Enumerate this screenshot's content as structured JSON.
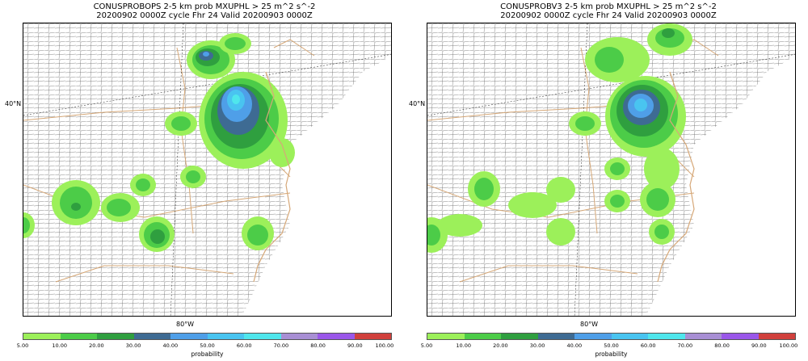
{
  "panels": [
    {
      "title_line1": "CONUSPROBOPS 2-5 km prob MXUPHL > 25 m^2 s^-2",
      "title_line2": "20200902 0000Z cycle Fhr 24 Valid 20200903 0000Z"
    },
    {
      "title_line1": "CONUSPROBV3 2-5 km prob MXUPHL > 25 m^2 s^-2",
      "title_line2": "20200902 0000Z cycle Fhr 24 Valid 20200903 0000Z"
    }
  ],
  "axes": {
    "lat_label": "40°N",
    "lon_label": "80°W"
  },
  "colorbar": {
    "label": "probability",
    "ticks": [
      "5.00",
      "10.00",
      "20.00",
      "30.00",
      "40.00",
      "50.00",
      "60.00",
      "70.00",
      "80.00",
      "90.00",
      "100.00"
    ],
    "colors": [
      "#9cf05a",
      "#4ccc48",
      "#2f9f3f",
      "#3e6b93",
      "#4f9fe8",
      "#49c4f0",
      "#4fe6ec",
      "#a88fd4",
      "#9a57e9",
      "#d0403c"
    ]
  },
  "map_colors": {
    "land_borders": "#d6a878",
    "county_lines": "#555555",
    "grid": "#000000"
  }
}
